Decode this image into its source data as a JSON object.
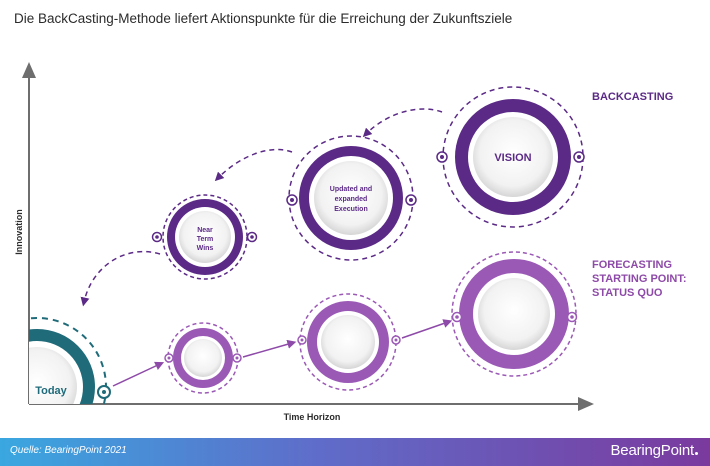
{
  "title": "Die BackCasting-Methode liefert Aktionspunkte für die Erreichung der Zukunftsziele",
  "axes": {
    "y_label": "Innovation",
    "x_label": "Time Horizon"
  },
  "labels": {
    "backcasting": "BACKCASTING",
    "forecasting_line1": "FORECASTING",
    "forecasting_line2": "STARTING POINT:",
    "forecasting_line3": "STATUS QUO"
  },
  "nodes": {
    "today": "Today",
    "near_term_line1": "Near",
    "near_term_line2": "Term",
    "near_term_line3": "Wins",
    "updated_line1": "Updated and",
    "updated_line2": "expanded",
    "updated_line3": "Execution",
    "vision": "VISION"
  },
  "footer": {
    "source": "Quelle: BearingPoint 2021",
    "brand": "BearingPoint"
  },
  "colors": {
    "dark_purple": "#5b2a86",
    "light_purple": "#9b59b6",
    "teal": "#1f6b7a",
    "text": "#2b2b2b"
  }
}
